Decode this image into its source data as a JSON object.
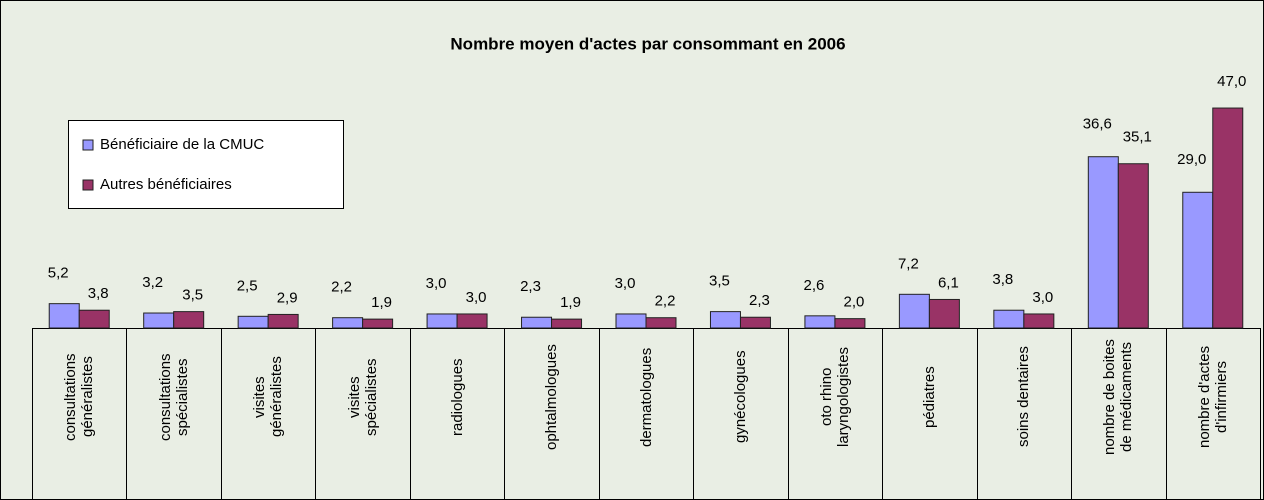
{
  "chart_data": {
    "type": "bar",
    "title": "Nombre moyen d'actes par consommant en 2006",
    "categories": [
      "consultations généralistes",
      "consultations spécialistes",
      "visites généralistes",
      "visites spécialistes",
      "radiologues",
      "ophtalmologues",
      "dermatologues",
      "gynécologues",
      "oto rhino laryngologistes",
      "pédiatres",
      "soins dentaires",
      "nombre de boites de médicaments",
      "nombre d'actes d'infirmiers"
    ],
    "series": [
      {
        "name": "Bénéficiaire de la CMUC",
        "color": "#9999ff",
        "values": [
          5.2,
          3.2,
          2.5,
          2.2,
          3.0,
          2.3,
          3.0,
          3.5,
          2.6,
          7.2,
          3.8,
          36.6,
          29.0
        ],
        "value_labels": [
          "5,2",
          "3,2",
          "2,5",
          "2,2",
          "3,0",
          "2,3",
          "3,0",
          "3,5",
          "2,6",
          "7,2",
          "3,8",
          "36,6",
          "29,0"
        ]
      },
      {
        "name": "Autres bénéficiaires",
        "color": "#993366",
        "values": [
          3.8,
          3.5,
          2.9,
          1.9,
          3.0,
          1.9,
          2.2,
          2.3,
          2.0,
          6.1,
          3.0,
          35.1,
          47.0
        ],
        "value_labels": [
          "3,8",
          "3,5",
          "2,9",
          "1,9",
          "3,0",
          "1,9",
          "2,2",
          "2,3",
          "2,0",
          "6,1",
          "3,0",
          "35,1",
          "47,0"
        ]
      }
    ],
    "ylim": [
      0,
      50
    ],
    "legend": "upper left"
  }
}
